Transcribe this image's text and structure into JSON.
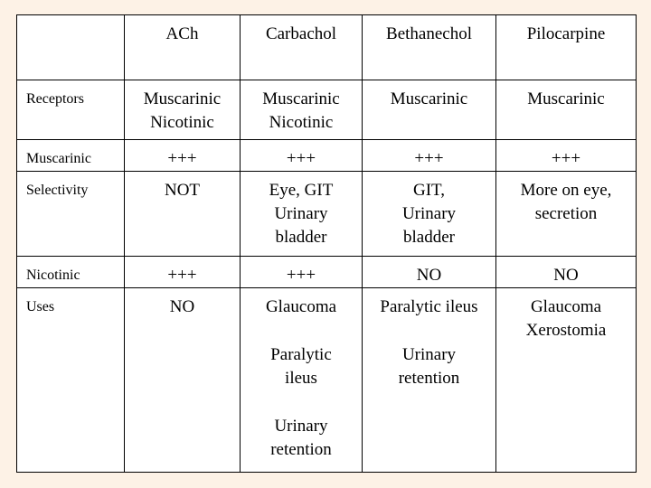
{
  "table": {
    "header": [
      "ACh",
      "Carbachol",
      "Bethanechol",
      "Pilocarpine"
    ],
    "rows": [
      {
        "label": "Receptors",
        "cells": [
          [
            [
              "Muscarinic",
              "Nicotinic"
            ]
          ],
          [
            [
              "Muscarinic",
              "Nicotinic"
            ]
          ],
          [
            [
              "Muscarinic"
            ]
          ],
          [
            [
              "Muscarinic"
            ]
          ]
        ]
      },
      {
        "label": "Muscarinic",
        "cells": [
          [
            [
              "+++"
            ]
          ],
          [
            [
              "+++"
            ]
          ],
          [
            [
              "+++"
            ]
          ],
          [
            [
              "+++"
            ]
          ]
        ]
      },
      {
        "label": "Selectivity",
        "cells": [
          [
            [
              "NOT"
            ]
          ],
          [
            [
              "Eye, GIT",
              "Urinary",
              "bladder"
            ]
          ],
          [
            [
              "GIT,",
              "Urinary",
              "bladder"
            ]
          ],
          [
            [
              "More on eye,",
              "secretion"
            ]
          ]
        ]
      },
      {
        "label": "Nicotinic",
        "cells": [
          [
            [
              "+++"
            ]
          ],
          [
            [
              "+++"
            ]
          ],
          [
            [
              "NO"
            ]
          ],
          [
            [
              "NO"
            ]
          ]
        ]
      },
      {
        "label": "Uses",
        "cells": [
          [
            [
              "NO"
            ]
          ],
          [
            [
              "Glaucoma"
            ],
            [
              "Paralytic",
              "ileus"
            ],
            [
              "Urinary",
              "retention"
            ]
          ],
          [
            [
              "Paralytic ileus"
            ],
            [
              "Urinary",
              "retention"
            ]
          ],
          [
            [
              "Glaucoma",
              "Xerostomia"
            ]
          ]
        ]
      }
    ]
  }
}
